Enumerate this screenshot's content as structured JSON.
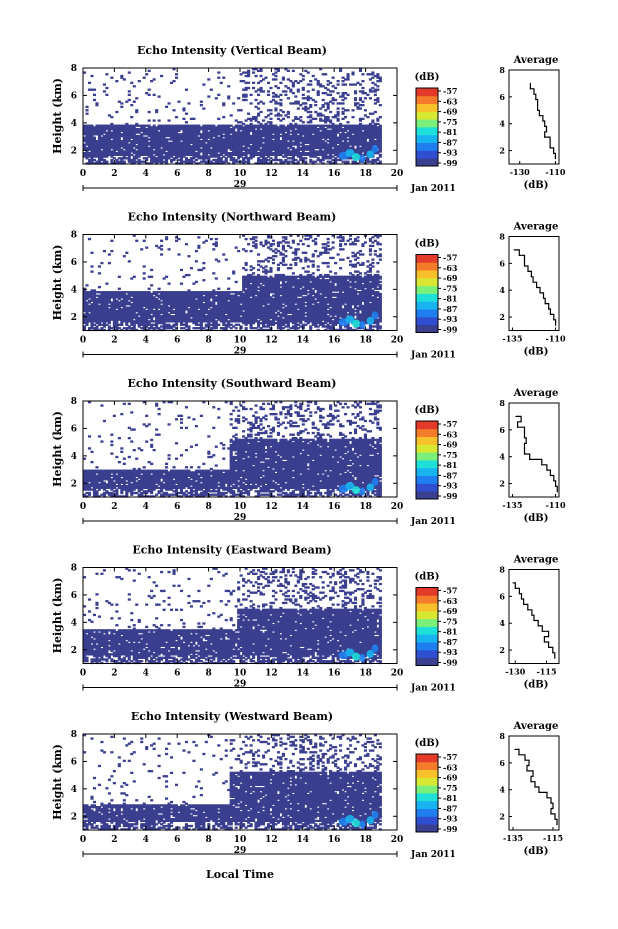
{
  "figure": {
    "xlabel": "Local Time",
    "colorbar_unit": "(dB)",
    "date_label": "Jan 2011",
    "day_label": "29",
    "colorscale": [
      "#3a3f8f",
      "#2f4fd0",
      "#1f7ff0",
      "#18b4f0",
      "#1ee0d8",
      "#7af07a",
      "#d8e832",
      "#f8c02a",
      "#f47b2a",
      "#e43a2a"
    ],
    "empty_color": "#ffffff"
  },
  "chart_data": [
    {
      "type": "heatmap",
      "title": "Echo Intensity (Vertical Beam)",
      "ylabel": "Height (km)",
      "x_ticks": [
        "0",
        "2",
        "4",
        "6",
        "8",
        "10",
        "12",
        "14",
        "16",
        "18",
        "20"
      ],
      "y_ticks": [
        "2",
        "4",
        "6",
        "8"
      ],
      "xlim": [
        0,
        20
      ],
      "ylim": [
        1,
        8
      ],
      "colorbar_ticks": [
        "-57",
        "-63",
        "-69",
        "-75",
        "-81",
        "-87",
        "-93",
        "-99"
      ],
      "profile": {
        "title": "Average",
        "xlabel": "(dB)",
        "x_ticks": [
          "-130",
          "-110"
        ],
        "y_ticks": [
          "2",
          "4",
          "6",
          "8"
        ],
        "xlim": [
          -136,
          -108
        ],
        "points": [
          [
            -124,
            7.0
          ],
          [
            -124,
            6.6
          ],
          [
            -122,
            6.2
          ],
          [
            -121,
            5.8
          ],
          [
            -120,
            5.4
          ],
          [
            -120,
            5.0
          ],
          [
            -119,
            4.6
          ],
          [
            -117,
            4.2
          ],
          [
            -116,
            3.8
          ],
          [
            -115,
            3.4
          ],
          [
            -116,
            3.0
          ],
          [
            -113,
            2.6
          ],
          [
            -113,
            2.2
          ],
          [
            -111,
            1.8
          ],
          [
            -110,
            1.4
          ]
        ]
      }
    },
    {
      "type": "heatmap",
      "title": "Echo Intensity (Northward Beam)",
      "ylabel": "Height (km)",
      "x_ticks": [
        "0",
        "2",
        "4",
        "6",
        "8",
        "10",
        "12",
        "14",
        "16",
        "18",
        "20"
      ],
      "y_ticks": [
        "2",
        "4",
        "6",
        "8"
      ],
      "xlim": [
        0,
        20
      ],
      "ylim": [
        1,
        8
      ],
      "colorbar_ticks": [
        "-57",
        "-63",
        "-69",
        "-75",
        "-81",
        "-87",
        "-93",
        "-99"
      ],
      "profile": {
        "title": "Average",
        "xlabel": "(dB)",
        "x_ticks": [
          "-135",
          "-110"
        ],
        "y_ticks": [
          "2",
          "4",
          "6",
          "8"
        ],
        "xlim": [
          -137,
          -108
        ],
        "points": [
          [
            -134,
            7.0
          ],
          [
            -131,
            6.6
          ],
          [
            -128,
            6.2
          ],
          [
            -128,
            5.8
          ],
          [
            -126,
            5.4
          ],
          [
            -124,
            5.0
          ],
          [
            -123,
            4.6
          ],
          [
            -121,
            4.2
          ],
          [
            -119,
            3.8
          ],
          [
            -117,
            3.4
          ],
          [
            -116,
            3.0
          ],
          [
            -114,
            2.6
          ],
          [
            -113,
            2.2
          ],
          [
            -111,
            1.8
          ],
          [
            -110,
            1.4
          ]
        ]
      }
    },
    {
      "type": "heatmap",
      "title": "Echo Intensity (Southward Beam)",
      "ylabel": "Height (km)",
      "x_ticks": [
        "0",
        "2",
        "4",
        "6",
        "8",
        "10",
        "12",
        "14",
        "16",
        "18",
        "20"
      ],
      "y_ticks": [
        "2",
        "4",
        "6",
        "8"
      ],
      "xlim": [
        0,
        20
      ],
      "ylim": [
        1,
        8
      ],
      "colorbar_ticks": [
        "-57",
        "-63",
        "-69",
        "-75",
        "-81",
        "-87",
        "-93",
        "-99"
      ],
      "profile": {
        "title": "Average",
        "xlabel": "(dB)",
        "x_ticks": [
          "-135",
          "-110"
        ],
        "y_ticks": [
          "2",
          "4",
          "6",
          "8"
        ],
        "xlim": [
          -137,
          -108
        ],
        "points": [
          [
            -133,
            7.0
          ],
          [
            -130,
            6.6
          ],
          [
            -132,
            6.2
          ],
          [
            -128,
            5.8
          ],
          [
            -128,
            5.4
          ],
          [
            -127,
            5.0
          ],
          [
            -128,
            4.6
          ],
          [
            -128,
            4.2
          ],
          [
            -125,
            3.8
          ],
          [
            -118,
            3.4
          ],
          [
            -115,
            3.0
          ],
          [
            -113,
            2.6
          ],
          [
            -111,
            2.2
          ],
          [
            -110,
            1.8
          ],
          [
            -109,
            1.4
          ]
        ]
      }
    },
    {
      "type": "heatmap",
      "title": "Echo Intensity (Eastward Beam)",
      "ylabel": "Height (km)",
      "x_ticks": [
        "0",
        "2",
        "4",
        "6",
        "8",
        "10",
        "12",
        "14",
        "16",
        "18",
        "20"
      ],
      "y_ticks": [
        "2",
        "4",
        "6",
        "8"
      ],
      "xlim": [
        0,
        20
      ],
      "ylim": [
        1,
        8
      ],
      "colorbar_ticks": [
        "-57",
        "-63",
        "-69",
        "-75",
        "-81",
        "-87",
        "-93",
        "-99"
      ],
      "profile": {
        "title": "Average",
        "xlabel": "(dB)",
        "x_ticks": [
          "-130",
          "-115"
        ],
        "y_ticks": [
          "2",
          "4",
          "6",
          "8"
        ],
        "xlim": [
          -133,
          -109
        ],
        "points": [
          [
            -131,
            7.0
          ],
          [
            -130,
            6.6
          ],
          [
            -128,
            6.2
          ],
          [
            -127,
            5.8
          ],
          [
            -126,
            5.4
          ],
          [
            -124,
            5.0
          ],
          [
            -122,
            4.6
          ],
          [
            -121,
            4.2
          ],
          [
            -119,
            3.8
          ],
          [
            -117,
            3.4
          ],
          [
            -114,
            3.0
          ],
          [
            -116,
            2.6
          ],
          [
            -114,
            2.2
          ],
          [
            -112,
            1.8
          ],
          [
            -111,
            1.4
          ]
        ]
      }
    },
    {
      "type": "heatmap",
      "title": "Echo Intensity (Westward Beam)",
      "ylabel": "Height (km)",
      "x_ticks": [
        "0",
        "2",
        "4",
        "6",
        "8",
        "10",
        "12",
        "14",
        "16",
        "18",
        "20"
      ],
      "y_ticks": [
        "2",
        "4",
        "6",
        "8"
      ],
      "xlim": [
        0,
        20
      ],
      "ylim": [
        1,
        8
      ],
      "colorbar_ticks": [
        "-57",
        "-63",
        "-69",
        "-75",
        "-81",
        "-87",
        "-93",
        "-99"
      ],
      "profile": {
        "title": "Average",
        "xlabel": "(dB)",
        "x_ticks": [
          "-135",
          "-115"
        ],
        "y_ticks": [
          "2",
          "4",
          "6",
          "8"
        ],
        "xlim": [
          -137,
          -112
        ],
        "points": [
          [
            -134,
            7.0
          ],
          [
            -132,
            6.6
          ],
          [
            -129,
            6.2
          ],
          [
            -127,
            5.8
          ],
          [
            -128,
            5.4
          ],
          [
            -125,
            5.0
          ],
          [
            -126,
            4.6
          ],
          [
            -124,
            4.2
          ],
          [
            -122,
            3.8
          ],
          [
            -118,
            3.4
          ],
          [
            -116,
            3.0
          ],
          [
            -115,
            2.6
          ],
          [
            -116,
            2.2
          ],
          [
            -114,
            1.8
          ],
          [
            -113,
            1.4
          ]
        ]
      }
    }
  ]
}
